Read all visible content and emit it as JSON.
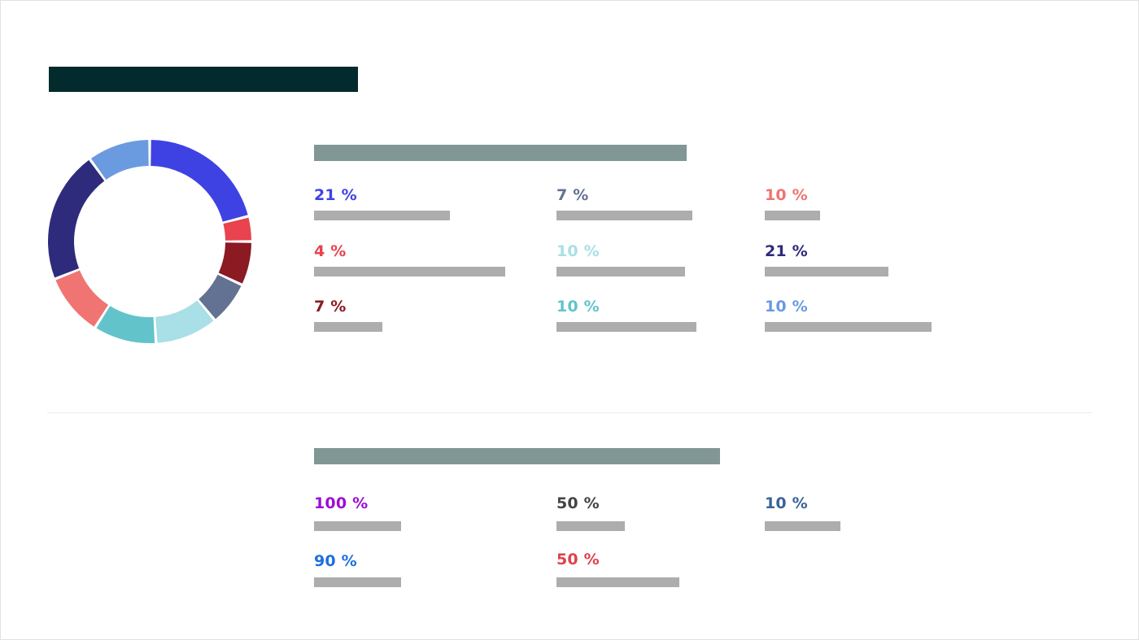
{
  "colors": {
    "title_bar": "#032a2d",
    "heading_bar": "#819796",
    "placeholder_bar": "#adadad"
  },
  "chart_data": [
    {
      "type": "pie",
      "donut": true,
      "start_angle": "12 o'clock",
      "direction": "clockwise",
      "slices": [
        {
          "label": "21 %",
          "value": 21,
          "color": "#3f42e3"
        },
        {
          "label": "4 %",
          "value": 4,
          "color": "#e8434f"
        },
        {
          "label": "7 %",
          "value": 7,
          "color": "#8b1a22"
        },
        {
          "label": "7 %",
          "value": 7,
          "color": "#637192"
        },
        {
          "label": "10 %",
          "value": 10,
          "color": "#a9dfe6"
        },
        {
          "label": "10 %",
          "value": 10,
          "color": "#63c3cb"
        },
        {
          "label": "10 %",
          "value": 10,
          "color": "#ef7472"
        },
        {
          "label": "21 %",
          "value": 21,
          "color": "#2e2a7c"
        },
        {
          "label": "10 %",
          "value": 10,
          "color": "#6a9be0"
        }
      ]
    }
  ],
  "section1": {
    "stats": [
      {
        "value": "21 %",
        "color": "#3f42e3"
      },
      {
        "value": "7 %",
        "color": "#637192"
      },
      {
        "value": "10 %",
        "color": "#ef7472"
      },
      {
        "value": "4 %",
        "color": "#e8434f"
      },
      {
        "value": "10 %",
        "color": "#a9dfe6"
      },
      {
        "value": "21 %",
        "color": "#2e2a7c"
      },
      {
        "value": "7 %",
        "color": "#8b1a22"
      },
      {
        "value": "10 %",
        "color": "#63c3cb"
      },
      {
        "value": "10 %",
        "color": "#6a9be0"
      }
    ]
  },
  "section2": {
    "stats": [
      {
        "value": "100 %",
        "color": "#9b0fd6"
      },
      {
        "value": "50 %",
        "color": "#444444"
      },
      {
        "value": "10 %",
        "color": "#3a6397"
      },
      {
        "value": "90 %",
        "color": "#1f6fe0"
      },
      {
        "value": "50 %",
        "color": "#e2404c"
      }
    ]
  }
}
